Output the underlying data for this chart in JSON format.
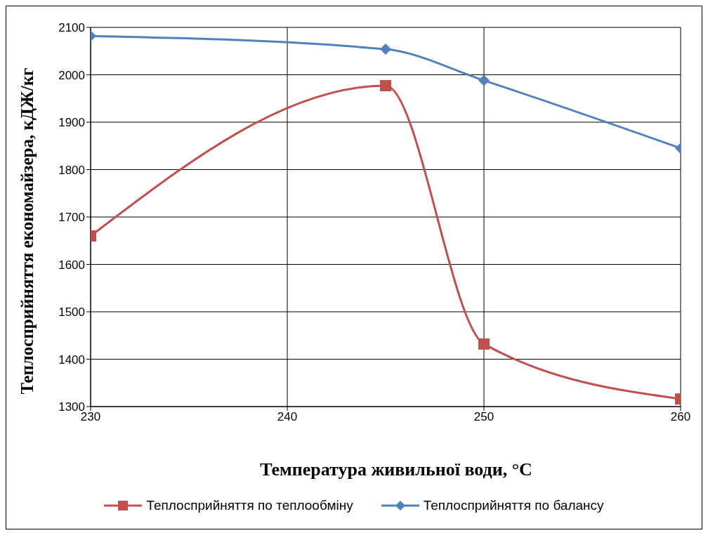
{
  "chart_data": {
    "type": "line",
    "xlabel": "Температура живильної води, °C",
    "ylabel": "Теплосприйняття економайзера, кДЖ/кг",
    "x": [
      230,
      245,
      250,
      260
    ],
    "series": [
      {
        "name": "Теплосприйняття по теплообміну",
        "color": "#c0504d",
        "values": [
          1660,
          1977,
          1432,
          1316
        ],
        "marker": "square"
      },
      {
        "name": "Теплосприйняття по балансу",
        "color": "#4f81bd",
        "values": [
          2082,
          2054,
          1988,
          1845
        ],
        "marker": "diamond"
      }
    ],
    "xlim": [
      230,
      260
    ],
    "xticks": [
      230,
      240,
      250,
      260
    ],
    "ylim": [
      1300,
      2100
    ],
    "yticks": [
      1300,
      1400,
      1500,
      1600,
      1700,
      1800,
      1900,
      2000,
      2100
    ],
    "grid": true,
    "legend": "bottom"
  }
}
